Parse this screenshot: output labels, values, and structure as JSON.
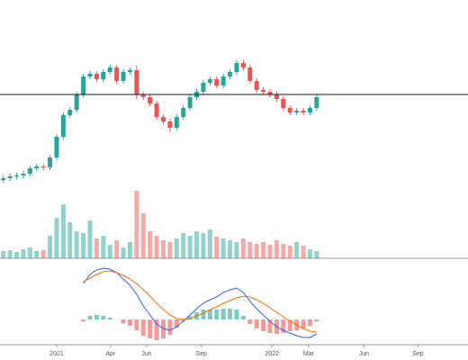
{
  "chart_data": {
    "type": "candlestick",
    "open": [
      20,
      22,
      24,
      25,
      27,
      33,
      35,
      34,
      45,
      68,
      92,
      98,
      115,
      135,
      138,
      132,
      140,
      145,
      130,
      140,
      142,
      115,
      112,
      105,
      90,
      85,
      78,
      90,
      100,
      112,
      118,
      128,
      132,
      125,
      135,
      140,
      150,
      145,
      130,
      120,
      118,
      115,
      110,
      100,
      95,
      97,
      95,
      100
    ],
    "high": [
      25,
      27,
      28,
      30,
      36,
      38,
      38,
      48,
      71,
      95,
      101,
      118,
      138,
      141,
      141,
      143,
      148,
      148,
      143,
      145,
      147,
      118,
      115,
      108,
      93,
      88,
      93,
      103,
      115,
      121,
      131,
      135,
      135,
      138,
      143,
      153,
      153,
      148,
      133,
      123,
      121,
      118,
      113,
      103,
      100,
      100,
      103,
      115
    ],
    "low": [
      17,
      19,
      21,
      22,
      24,
      30,
      31,
      31,
      42,
      65,
      89,
      95,
      112,
      132,
      129,
      129,
      137,
      127,
      127,
      137,
      110,
      109,
      102,
      87,
      82,
      73,
      75,
      87,
      97,
      109,
      115,
      125,
      122,
      122,
      132,
      137,
      142,
      127,
      117,
      115,
      112,
      107,
      97,
      92,
      92,
      92,
      92,
      97
    ],
    "close": [
      22,
      24,
      25,
      27,
      33,
      35,
      34,
      45,
      68,
      92,
      98,
      115,
      135,
      138,
      132,
      140,
      145,
      130,
      140,
      142,
      115,
      112,
      105,
      90,
      85,
      78,
      90,
      100,
      112,
      118,
      128,
      132,
      125,
      135,
      140,
      150,
      145,
      130,
      120,
      118,
      115,
      110,
      100,
      95,
      97,
      95,
      100,
      112
    ],
    "volume": [
      8,
      9,
      7,
      10,
      12,
      8,
      9,
      25,
      45,
      60,
      40,
      30,
      28,
      42,
      22,
      25,
      15,
      20,
      12,
      18,
      75,
      50,
      30,
      25,
      20,
      18,
      22,
      28,
      25,
      30,
      28,
      32,
      24,
      22,
      20,
      18,
      22,
      18,
      16,
      18,
      15,
      20,
      16,
      14,
      18,
      14,
      10,
      8
    ],
    "macd": [
      null,
      null,
      null,
      null,
      null,
      null,
      null,
      null,
      null,
      null,
      null,
      null,
      40,
      50,
      55,
      57,
      56,
      52,
      45,
      38,
      28,
      15,
      5,
      -5,
      -10,
      -12,
      -8,
      -2,
      5,
      12,
      18,
      22,
      25,
      30,
      33,
      35,
      30,
      20,
      12,
      5,
      -2,
      -8,
      -12,
      -15,
      -18,
      -20,
      -20,
      -16
    ],
    "signal": [
      null,
      null,
      null,
      null,
      null,
      null,
      null,
      null,
      null,
      null,
      null,
      null,
      42,
      46,
      50,
      53,
      54,
      52,
      49,
      45,
      40,
      33,
      26,
      18,
      11,
      5,
      1,
      0,
      1,
      4,
      7,
      11,
      14,
      18,
      21,
      24,
      26,
      25,
      22,
      18,
      13,
      8,
      3,
      -2,
      -6,
      -10,
      -13,
      -14
    ],
    "histogram": [
      null,
      null,
      null,
      null,
      null,
      null,
      null,
      null,
      null,
      null,
      null,
      null,
      -2,
      4,
      5,
      4,
      2,
      0,
      -4,
      -7,
      -12,
      -18,
      -21,
      -23,
      -21,
      -17,
      -9,
      -2,
      4,
      8,
      11,
      11,
      11,
      12,
      12,
      11,
      4,
      -5,
      -10,
      -13,
      -15,
      -16,
      -15,
      -13,
      -12,
      -10,
      -7,
      -2
    ],
    "hline": 115,
    "up_color": "#26a69a",
    "down_color": "#ef5350",
    "macd_color": "#2962ff",
    "signal_color": "#ff6d00",
    "xlim": [
      -0.5,
      69.7
    ],
    "ylim": [
      0,
      160
    ],
    "volume_ylim": [
      0,
      80
    ],
    "macd_ylim": [
      -30,
      60
    ],
    "xticks": [
      {
        "value": 8,
        "label": "2021"
      },
      {
        "value": 16.1,
        "label": "Apr"
      },
      {
        "value": 21.5,
        "label": "Jun"
      },
      {
        "value": 29.7,
        "label": "Sep"
      },
      {
        "value": 40.3,
        "label": "2022"
      },
      {
        "value": 45.8,
        "label": "Mar"
      },
      {
        "value": 54.1,
        "label": "Jun"
      },
      {
        "value": 62.2,
        "label": "Sep"
      }
    ]
  }
}
